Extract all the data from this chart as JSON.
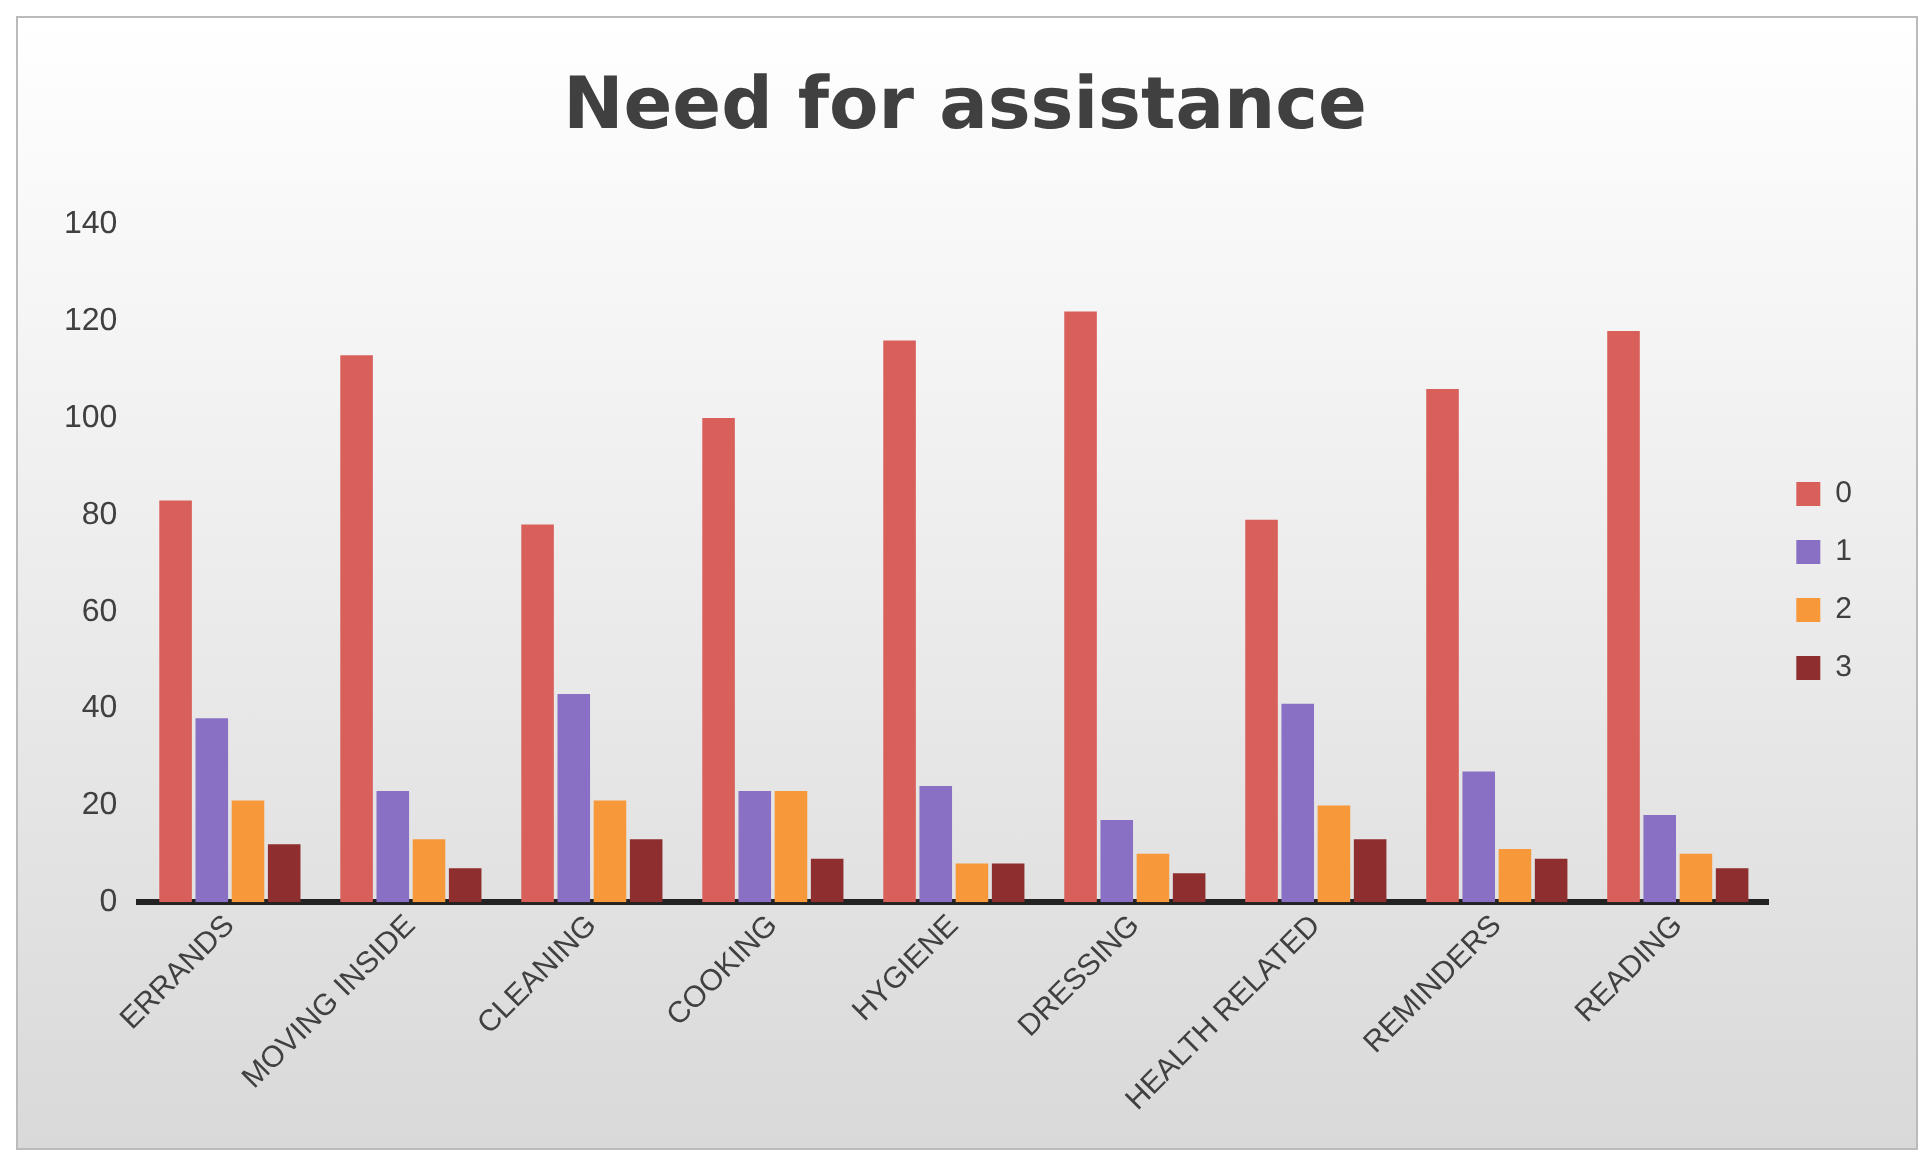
{
  "chart_data": {
    "type": "bar",
    "title": "Need for assistance",
    "categories": [
      "ERRANDS",
      "MOVING INSIDE",
      "CLEANING",
      "COOKING",
      "HYGIENE",
      "DRESSING",
      "HEALTH RELATED",
      "REMINDERS",
      "READING"
    ],
    "series": [
      {
        "name": "0",
        "color": "#d9605a",
        "values": [
          83,
          113,
          78,
          100,
          116,
          122,
          79,
          106,
          118
        ]
      },
      {
        "name": "1",
        "color": "#8a70c4",
        "values": [
          38,
          23,
          43,
          23,
          24,
          17,
          41,
          27,
          18
        ]
      },
      {
        "name": "2",
        "color": "#f7983a",
        "values": [
          21,
          13,
          21,
          23,
          8,
          10,
          20,
          11,
          10
        ]
      },
      {
        "name": "3",
        "color": "#8e2e2e",
        "values": [
          12,
          7,
          13,
          9,
          8,
          6,
          13,
          9,
          7
        ]
      }
    ],
    "ylim": [
      0,
      140
    ],
    "yticks": [
      0,
      20,
      40,
      60,
      80,
      100,
      120,
      140
    ],
    "grid": false,
    "legend": "right"
  }
}
